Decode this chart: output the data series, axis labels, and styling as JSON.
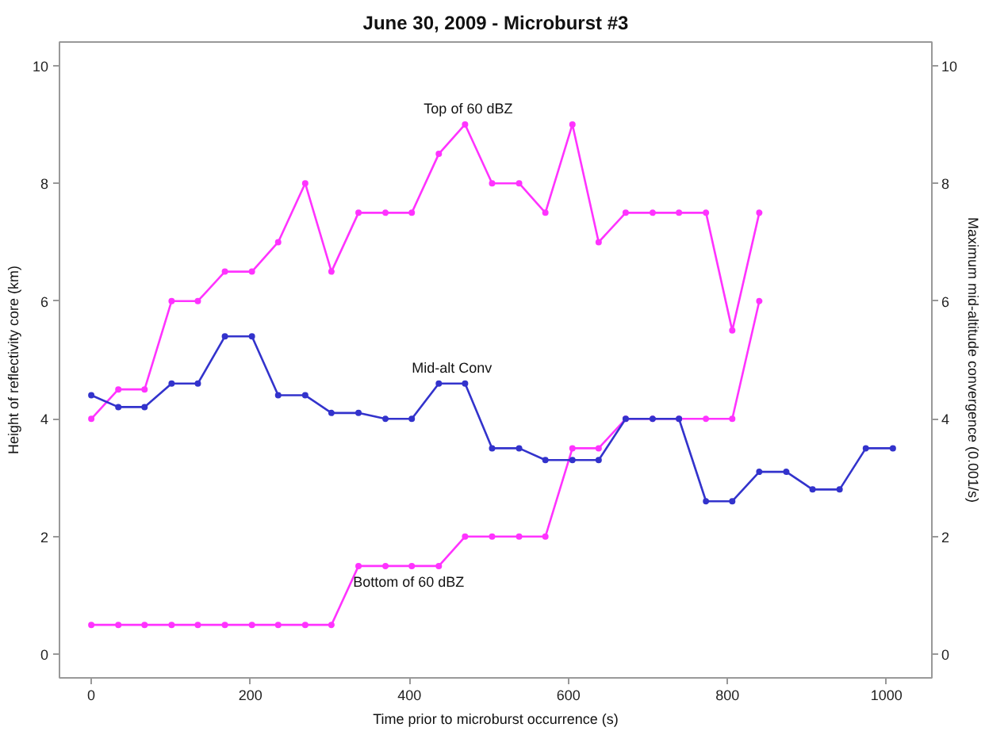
{
  "chart_data": {
    "type": "line",
    "title": "June 30, 2009 - Microburst #3",
    "xlabel": "Time prior to microburst occurrence (s)",
    "ylabel": "Height of reflectivity core (km)",
    "y2label": "Maximum mid-altitude convergence (0.001/s)",
    "xlim": [
      -40,
      1057
    ],
    "xticks": [
      0,
      200,
      400,
      600,
      800,
      1000
    ],
    "ylim": [
      -0.4,
      10.4
    ],
    "yticks": [
      0,
      2,
      4,
      6,
      8,
      10
    ],
    "y2lim": [
      -0.4,
      10.4
    ],
    "y2ticks": [
      0,
      2,
      4,
      6,
      8,
      10
    ],
    "marker": "circle",
    "line_style": "solid",
    "series": [
      {
        "name": "Top of 60 dBZ",
        "color": "#ff33ff",
        "x": [
          0,
          34,
          67,
          101,
          134,
          168,
          202,
          235,
          269,
          302,
          336,
          370,
          403,
          437,
          470,
          504,
          538,
          571,
          605,
          638,
          672,
          706,
          739,
          773,
          806,
          840
        ],
        "values": [
          4.0,
          4.5,
          4.5,
          6.0,
          6.0,
          6.5,
          6.5,
          7.0,
          8.0,
          6.5,
          7.5,
          7.5,
          7.5,
          8.5,
          9.0,
          8.0,
          8.0,
          7.5,
          9.0,
          7.0,
          7.5,
          7.5,
          7.5,
          7.5,
          5.5,
          7.5
        ]
      },
      {
        "name": "Bottom of 60 dBZ",
        "color": "#ff33ff",
        "x": [
          0,
          34,
          67,
          101,
          134,
          168,
          202,
          235,
          269,
          302,
          336,
          370,
          403,
          437,
          470,
          504,
          538,
          571,
          605,
          638,
          672,
          706,
          739,
          773,
          806,
          840
        ],
        "values": [
          0.5,
          0.5,
          0.5,
          0.5,
          0.5,
          0.5,
          0.5,
          0.5,
          0.5,
          0.5,
          1.5,
          1.5,
          1.5,
          1.5,
          2.0,
          2.0,
          2.0,
          2.0,
          3.5,
          3.5,
          4.0,
          4.0,
          4.0,
          4.0,
          4.0,
          6.0
        ]
      },
      {
        "name": "Mid-alt Conv",
        "color": "#3333cc",
        "axis": "y2",
        "x": [
          0,
          34,
          67,
          101,
          134,
          168,
          202,
          235,
          269,
          302,
          336,
          370,
          403,
          437,
          470,
          504,
          538,
          571,
          605,
          638,
          672,
          706,
          739,
          773,
          806,
          840,
          874,
          907,
          941,
          974,
          1008
        ],
        "values": [
          4.4,
          4.2,
          4.2,
          4.6,
          4.6,
          5.4,
          5.4,
          4.4,
          4.4,
          4.1,
          4.1,
          4.0,
          4.0,
          4.6,
          4.6,
          3.5,
          3.5,
          3.3,
          3.3,
          3.3,
          4.0,
          4.0,
          4.0,
          2.6,
          2.6,
          3.1,
          3.1,
          2.8,
          2.8,
          3.5,
          3.5
        ]
      }
    ]
  }
}
